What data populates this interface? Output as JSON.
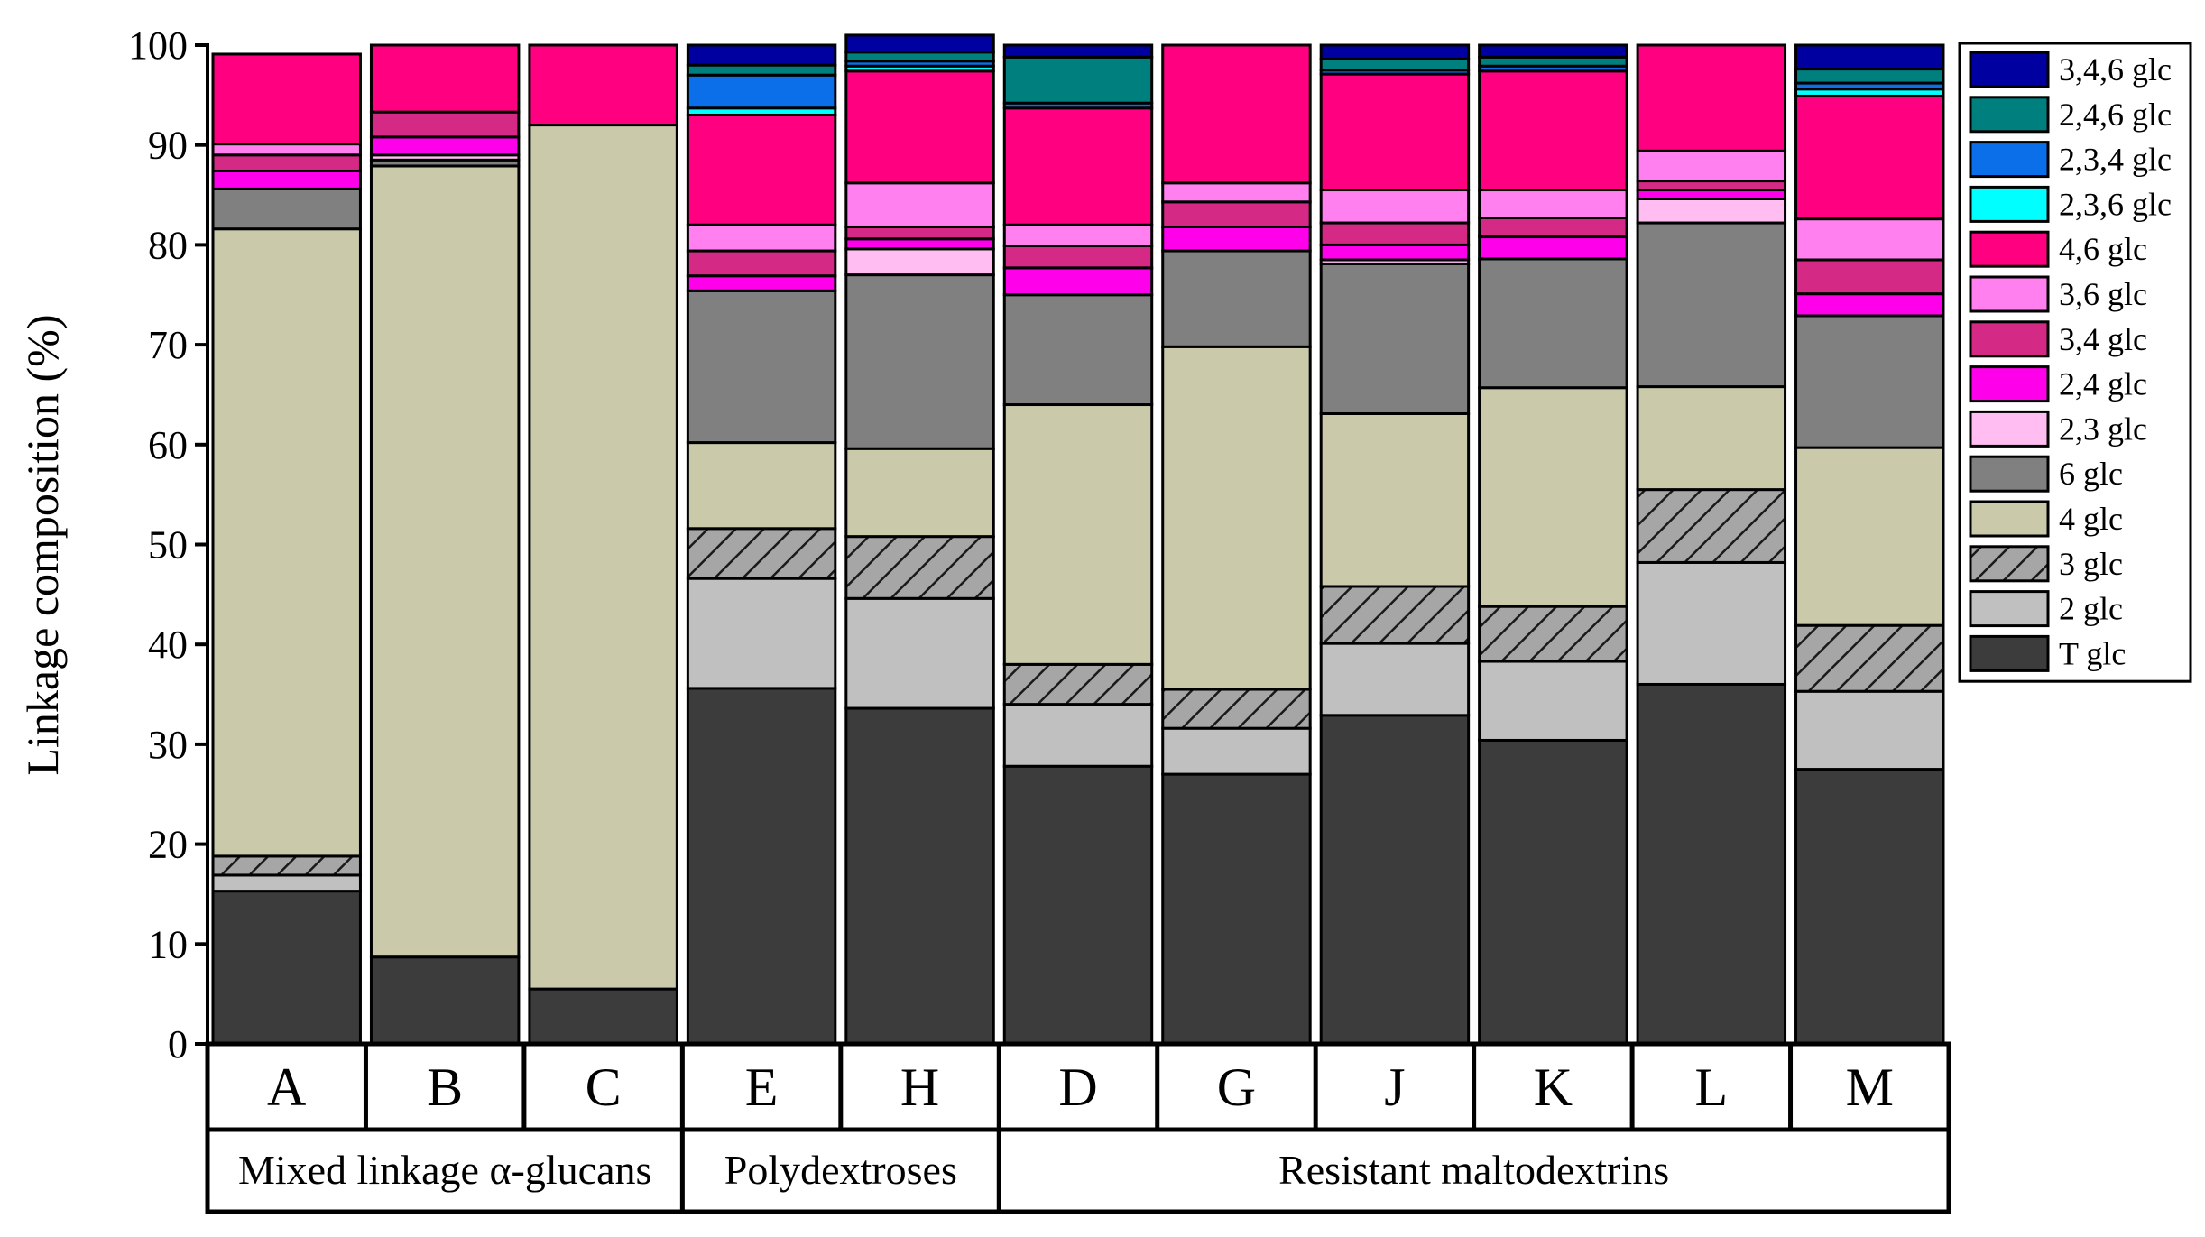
{
  "chart_data": {
    "type": "bar",
    "stacked": true,
    "ylabel": "Linkage composition (%)",
    "xlabel": "",
    "ylim": [
      0,
      100
    ],
    "yticks": [
      0,
      10,
      20,
      30,
      40,
      50,
      60,
      70,
      80,
      90,
      100
    ],
    "grid": false,
    "legend_position": "top-right",
    "categories": [
      "A",
      "B",
      "C",
      "E",
      "H",
      "D",
      "G",
      "J",
      "K",
      "L",
      "M"
    ],
    "groups": [
      {
        "label": "Mixed linkage α-glucans",
        "categories": [
          "A",
          "B",
          "C"
        ]
      },
      {
        "label": "Polydextroses",
        "categories": [
          "E",
          "H"
        ]
      },
      {
        "label": "Resistant maltodextrins",
        "categories": [
          "D",
          "G",
          "J",
          "K",
          "L",
          "M"
        ]
      }
    ],
    "series": [
      {
        "name": "T glc",
        "color": "#3c3c3c",
        "pattern": "solid",
        "values": [
          15.3,
          8.7,
          5.5,
          35.6,
          33.6,
          27.8,
          27.0,
          32.9,
          30.4,
          36.0,
          27.5
        ]
      },
      {
        "name": "2 glc",
        "color": "#c0c0c0",
        "pattern": "solid",
        "values": [
          1.6,
          0.0,
          0.0,
          11.0,
          11.0,
          6.2,
          4.6,
          7.2,
          7.9,
          12.2,
          7.8
        ]
      },
      {
        "name": "3 glc",
        "color": "#a6a6a6",
        "pattern": "hatch",
        "values": [
          1.9,
          0.0,
          0.0,
          5.0,
          6.2,
          4.0,
          3.9,
          5.7,
          5.5,
          7.3,
          6.6
        ]
      },
      {
        "name": "4 glc",
        "color": "#cacaab",
        "pattern": "solid",
        "values": [
          62.8,
          79.2,
          86.5,
          8.6,
          8.8,
          26.0,
          34.3,
          17.3,
          21.9,
          10.3,
          17.8
        ]
      },
      {
        "name": "6 glc",
        "color": "#808080",
        "pattern": "solid",
        "values": [
          4.0,
          0.6,
          0.0,
          15.2,
          17.4,
          11.0,
          9.6,
          15.0,
          12.9,
          16.4,
          13.2
        ]
      },
      {
        "name": "2,3 glc",
        "color": "#ffbdf2",
        "pattern": "solid",
        "values": [
          0.0,
          0.5,
          0.0,
          0.0,
          2.6,
          0.0,
          0.0,
          0.4,
          0.0,
          2.4,
          0.0
        ]
      },
      {
        "name": "2,4 glc",
        "color": "#ff00ea",
        "pattern": "solid",
        "values": [
          1.8,
          1.8,
          0.0,
          1.5,
          1.0,
          2.7,
          2.4,
          1.5,
          2.2,
          0.9,
          2.2
        ]
      },
      {
        "name": "3,4 glc",
        "color": "#d42a86",
        "pattern": "solid",
        "values": [
          1.6,
          2.5,
          0.0,
          2.5,
          1.2,
          2.2,
          2.5,
          2.2,
          1.9,
          0.9,
          3.4
        ]
      },
      {
        "name": "3,6 glc",
        "color": "#ff80ee",
        "pattern": "solid",
        "values": [
          1.1,
          0.0,
          0.0,
          2.6,
          4.4,
          2.1,
          1.9,
          3.3,
          2.8,
          3.0,
          4.1
        ]
      },
      {
        "name": "4,6 glc",
        "color": "#ff0080",
        "pattern": "solid",
        "values": [
          9.0,
          6.7,
          8.0,
          11.0,
          11.2,
          11.7,
          13.8,
          11.6,
          11.9,
          10.6,
          12.3
        ]
      },
      {
        "name": "2,3,6 glc",
        "color": "#00ffff",
        "pattern": "solid",
        "values": [
          0.0,
          0.0,
          0.0,
          0.7,
          0.5,
          0.0,
          0.0,
          0.0,
          0.0,
          0.0,
          0.7
        ]
      },
      {
        "name": "2,3,4 glc",
        "color": "#0a6fe8",
        "pattern": "solid",
        "values": [
          0.0,
          0.0,
          0.0,
          3.3,
          0.5,
          0.5,
          0.0,
          0.4,
          0.5,
          0.0,
          0.6
        ]
      },
      {
        "name": "2,4,6 glc",
        "color": "#007f7f",
        "pattern": "solid",
        "values": [
          0.0,
          0.0,
          0.0,
          1.0,
          0.9,
          4.6,
          0.0,
          1.1,
          0.9,
          0.0,
          1.4
        ]
      },
      {
        "name": "3,4,6 glc",
        "color": "#0000a0",
        "pattern": "solid",
        "values": [
          0.0,
          0.0,
          0.0,
          2.0,
          1.7,
          1.2,
          0.0,
          1.4,
          1.2,
          0.0,
          2.4
        ]
      }
    ]
  }
}
